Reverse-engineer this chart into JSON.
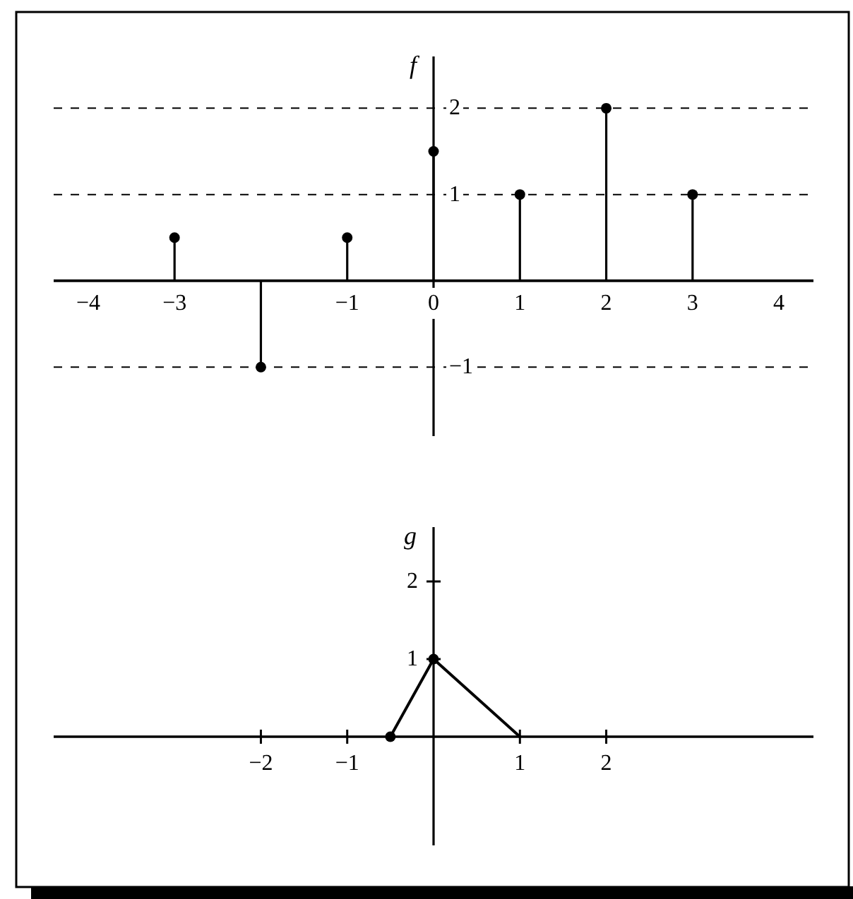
{
  "chart_data": [
    {
      "type": "lollipop",
      "ylabel": "f",
      "x": [
        -3,
        -2,
        -1,
        0,
        1,
        2,
        3
      ],
      "values": [
        0.5,
        -1,
        0.5,
        1.5,
        1,
        2,
        1
      ],
      "color": "#000000",
      "marker": "circle",
      "xlim": [
        -4.4,
        4.4
      ],
      "ylim": [
        -1.8,
        2.6
      ],
      "xticks": [
        -4,
        -3,
        -1,
        0,
        1,
        2,
        3,
        4
      ],
      "yticks": [
        -1,
        1,
        2
      ],
      "grid": "y"
    },
    {
      "type": "line",
      "ylabel": "g",
      "series": [
        {
          "x": [
            -0.5,
            0,
            1
          ],
          "values": [
            0,
            1,
            0
          ],
          "color": "#000000",
          "marker": "none"
        },
        {
          "type": "scatter",
          "x": [
            -0.5,
            0
          ],
          "values": [
            0,
            1
          ],
          "color": "#000000",
          "marker": "circle"
        }
      ],
      "xlim": [
        -4.4,
        4.4
      ],
      "ylim": [
        -1.4,
        2.7
      ],
      "xticks": [
        -2,
        -1,
        1,
        2
      ],
      "yticks": [
        1,
        2
      ]
    }
  ]
}
